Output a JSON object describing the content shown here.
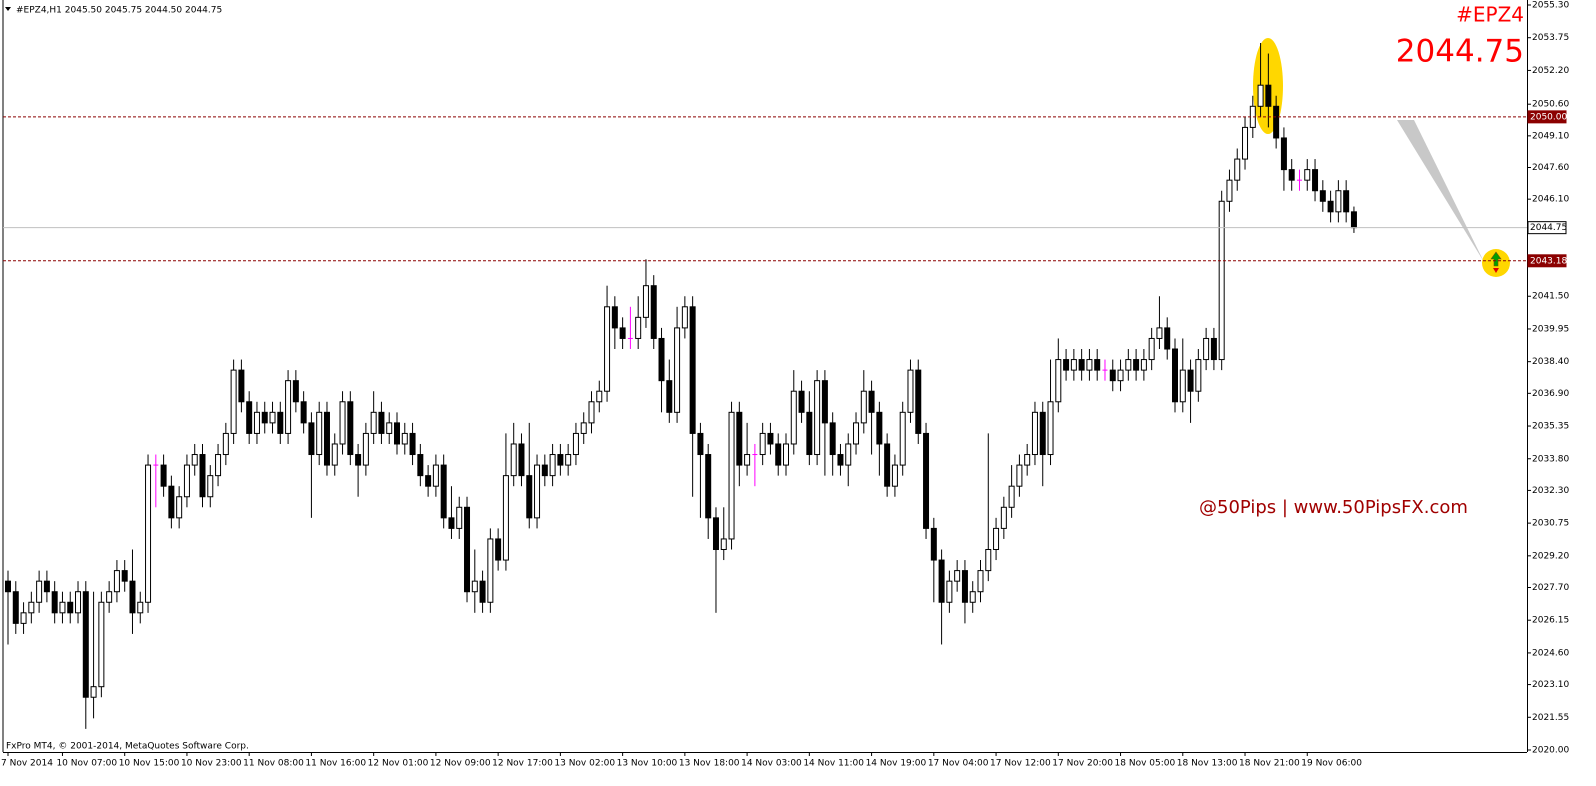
{
  "header": {
    "text": "#EPZ4,H1  2045.50 2045.75 2044.50 2044.75"
  },
  "corner": {
    "symbol": "#EPZ4",
    "price": "2044.75"
  },
  "watermark": "@50Pips | www.50PipsFX.com",
  "footer": "FxPro MT4, © 2001-2014, MetaQuotes Software Corp.",
  "chart_data": {
    "type": "candlestick",
    "bull_color": "#ffffff",
    "bear_color": "#000000",
    "doji_color": "#ff00ff",
    "outline_color": "#000000",
    "ylim": [
      2020.0,
      2055.3
    ],
    "yticks": [
      {
        "value": 2055.3,
        "label": "2055.30"
      },
      2053.75,
      {
        "value": 2052.2,
        "label": "2052.20"
      },
      {
        "value": 2050.6,
        "label": "2050.60"
      },
      {
        "value": 2049.1,
        "label": "2049.10"
      },
      {
        "value": 2047.6,
        "label": "2047.60"
      },
      {
        "value": 2046.1,
        "label": "2046.10"
      },
      {
        "value": 2041.5,
        "label": "2041.50"
      },
      2039.95,
      {
        "value": 2038.4,
        "label": "2038.40"
      },
      {
        "value": 2036.9,
        "label": "2036.90"
      },
      2035.35,
      {
        "value": 2033.8,
        "label": "2033.80"
      },
      {
        "value": 2032.3,
        "label": "2032.30"
      },
      2030.75,
      {
        "value": 2029.2,
        "label": "2029.20"
      },
      {
        "value": 2027.7,
        "label": "2027.70"
      },
      2026.15,
      {
        "value": 2024.6,
        "label": "2024.60"
      },
      {
        "value": 2023.1,
        "label": "2023.10"
      },
      2021.55,
      {
        "value": 2020.0,
        "label": "2020.00"
      }
    ],
    "hlines": [
      {
        "value": 2050.0,
        "label": "2050.00",
        "color": "#8b0000",
        "dashed": true
      },
      {
        "value": 2043.18,
        "label": "2043.18",
        "color": "#8b0000",
        "dashed": true
      },
      {
        "value": 2044.75,
        "label": "2044.75",
        "color": "#c0c0c0",
        "dashed": false
      }
    ],
    "categories": [
      "7 Nov 2014",
      null,
      null,
      null,
      null,
      null,
      null,
      "10 Nov 07:00",
      null,
      null,
      null,
      null,
      null,
      null,
      null,
      "10 Nov 15:00",
      null,
      null,
      null,
      null,
      null,
      null,
      null,
      "10 Nov 23:00",
      null,
      null,
      null,
      null,
      null,
      null,
      null,
      "11 Nov 08:00",
      null,
      null,
      null,
      null,
      null,
      null,
      null,
      "11 Nov 16:00",
      null,
      null,
      null,
      null,
      null,
      null,
      null,
      "12 Nov 01:00",
      null,
      null,
      null,
      null,
      null,
      null,
      null,
      "12 Nov 09:00",
      null,
      null,
      null,
      null,
      null,
      null,
      null,
      "12 Nov 17:00",
      null,
      null,
      null,
      null,
      null,
      null,
      null,
      "13 Nov 02:00",
      null,
      null,
      null,
      null,
      null,
      null,
      null,
      "13 Nov 10:00",
      null,
      null,
      null,
      null,
      null,
      null,
      null,
      "13 Nov 18:00",
      null,
      null,
      null,
      null,
      null,
      null,
      null,
      "14 Nov 03:00",
      null,
      null,
      null,
      null,
      null,
      null,
      null,
      "14 Nov 11:00",
      null,
      null,
      null,
      null,
      null,
      null,
      null,
      "14 Nov 19:00",
      null,
      null,
      null,
      null,
      null,
      null,
      null,
      "17 Nov 04:00",
      null,
      null,
      null,
      null,
      null,
      null,
      null,
      "17 Nov 12:00",
      null,
      null,
      null,
      null,
      null,
      null,
      null,
      "17 Nov 20:00",
      null,
      null,
      null,
      null,
      null,
      null,
      null,
      "18 Nov 05:00",
      null,
      null,
      null,
      null,
      null,
      null,
      null,
      "18 Nov 13:00",
      null,
      null,
      null,
      null,
      null,
      null,
      null,
      "18 Nov 21:00",
      null,
      null,
      null,
      null,
      null,
      null,
      null,
      "19 Nov 06:00",
      null,
      null,
      null,
      null,
      null,
      null
    ],
    "open": [
      2028.0,
      2027.5,
      2026.0,
      2026.5,
      2027.0,
      2028.0,
      2027.5,
      2026.5,
      2027.0,
      2026.5,
      2027.5,
      2022.5,
      2023.0,
      2027.0,
      2027.5,
      2028.5,
      2028.0,
      2026.5,
      2027.0,
      2033.5,
      2033.5,
      2032.5,
      2031.0,
      2032.0,
      2033.5,
      2034.0,
      2032.0,
      2033.0,
      2034.0,
      2035.0,
      2038.0,
      2036.5,
      2035.0,
      2036.0,
      2035.5,
      2036.0,
      2035.0,
      2037.5,
      2036.5,
      2035.5,
      2034.0,
      2036.0,
      2033.5,
      2034.5,
      2036.5,
      2034.0,
      2033.5,
      2035.0,
      2036.0,
      2035.0,
      2035.5,
      2034.5,
      2035.0,
      2034.0,
      2033.0,
      2032.5,
      2033.5,
      2031.0,
      2030.5,
      2031.5,
      2027.5,
      2028.0,
      2027.0,
      2030.0,
      2029.0,
      2033.0,
      2034.5,
      2033.0,
      2031.0,
      2033.5,
      2033.0,
      2034.0,
      2033.5,
      2034.0,
      2035.0,
      2035.5,
      2036.5,
      2037.0,
      2041.0,
      2040.0,
      2039.5,
      2039.5,
      2040.5,
      2042.0,
      2039.5,
      2037.5,
      2036.0,
      2040.0,
      2041.0,
      2035.0,
      2034.0,
      2031.0,
      2029.5,
      2030.0,
      2036.0,
      2033.5,
      2034.0,
      2034.0,
      2035.0,
      2034.5,
      2033.5,
      2034.5,
      2037.0,
      2036.0,
      2034.0,
      2037.5,
      2035.5,
      2034.0,
      2033.5,
      2034.5,
      2035.5,
      2037.0,
      2036.0,
      2034.5,
      2032.5,
      2033.5,
      2036.0,
      2038.0,
      2035.0,
      2030.5,
      2029.0,
      2027.0,
      2028.0,
      2028.5,
      2027.0,
      2027.5,
      2028.5,
      2029.5,
      2030.5,
      2031.5,
      2032.5,
      2033.5,
      2034.0,
      2036.0,
      2034.0,
      2036.5,
      2038.5,
      2038.0,
      2038.5,
      2038.0,
      2038.5,
      2038.0,
      2038.0,
      2037.5,
      2038.0,
      2038.5,
      2038.0,
      2038.5,
      2039.5,
      2040.0,
      2039.0,
      2036.5,
      2038.0,
      2037.0,
      2038.5,
      2039.5,
      2038.5,
      2046.0,
      2047.0,
      2048.0,
      2049.5,
      2050.5,
      2051.5,
      2050.5,
      2049.0,
      2047.5,
      2047.0,
      2047.0,
      2047.5,
      2046.5,
      2046.0,
      2045.5,
      2046.5,
      2045.5
    ],
    "high": [
      2028.5,
      2028.0,
      2027.0,
      2027.5,
      2028.5,
      2028.5,
      2028.0,
      2027.5,
      2027.5,
      2028.0,
      2028.0,
      2027.5,
      2027.5,
      2028.0,
      2029.0,
      2029.0,
      2029.5,
      2027.5,
      2034.0,
      2034.0,
      2034.0,
      2033.0,
      2032.5,
      2034.0,
      2034.5,
      2034.5,
      2033.5,
      2034.5,
      2035.5,
      2038.5,
      2038.5,
      2037.0,
      2036.5,
      2036.5,
      2036.5,
      2036.5,
      2038.0,
      2038.0,
      2037.0,
      2036.0,
      2036.5,
      2036.5,
      2035.0,
      2037.0,
      2037.0,
      2034.5,
      2035.5,
      2037.0,
      2036.5,
      2036.0,
      2036.0,
      2035.5,
      2035.5,
      2034.5,
      2033.5,
      2034.0,
      2034.0,
      2032.5,
      2032.0,
      2032.0,
      2029.5,
      2028.5,
      2030.5,
      2030.5,
      2035.0,
      2035.5,
      2035.0,
      2035.5,
      2034.0,
      2034.0,
      2034.5,
      2034.5,
      2034.5,
      2035.5,
      2036.0,
      2037.0,
      2037.5,
      2042.0,
      2041.5,
      2040.5,
      2041.0,
      2041.5,
      2043.25,
      2042.5,
      2040.0,
      2038.5,
      2041.0,
      2041.5,
      2041.5,
      2035.5,
      2034.5,
      2031.5,
      2031.5,
      2036.5,
      2036.5,
      2035.5,
      2034.5,
      2035.5,
      2035.5,
      2035.0,
      2035.0,
      2038.0,
      2037.5,
      2037.0,
      2038.0,
      2038.0,
      2036.0,
      2034.5,
      2035.0,
      2036.0,
      2038.0,
      2037.5,
      2036.5,
      2035.0,
      2034.0,
      2036.5,
      2038.5,
      2038.5,
      2035.5,
      2031.0,
      2029.5,
      2028.5,
      2029.0,
      2029.0,
      2028.0,
      2029.0,
      2035.0,
      2031.0,
      2032.0,
      2033.5,
      2034.0,
      2034.5,
      2036.5,
      2036.5,
      2038.5,
      2039.5,
      2039.0,
      2039.0,
      2039.0,
      2039.0,
      2039.0,
      2038.5,
      2038.5,
      2038.5,
      2039.0,
      2039.0,
      2039.0,
      2040.0,
      2041.5,
      2040.5,
      2039.5,
      2039.5,
      2038.5,
      2039.0,
      2040.0,
      2040.0,
      2046.5,
      2047.5,
      2048.5,
      2050.0,
      2051.0,
      2053.5,
      2053.0,
      2051.0,
      2049.5,
      2048.0,
      2047.5,
      2048.0,
      2048.0,
      2047.0,
      2046.5,
      2047.0,
      2047.0,
      2045.75
    ],
    "low": [
      2025.0,
      2025.5,
      2025.5,
      2026.0,
      2026.5,
      2027.0,
      2026.0,
      2026.0,
      2026.0,
      2026.0,
      2021.0,
      2021.5,
      2022.5,
      2026.5,
      2027.0,
      2027.5,
      2025.5,
      2026.0,
      2026.5,
      2031.5,
      2032.0,
      2030.5,
      2030.5,
      2031.5,
      2033.0,
      2031.5,
      2031.5,
      2032.5,
      2033.5,
      2034.5,
      2036.0,
      2034.5,
      2034.5,
      2035.0,
      2035.0,
      2034.5,
      2034.5,
      2036.0,
      2035.0,
      2031.0,
      2033.5,
      2033.0,
      2033.0,
      2034.0,
      2033.5,
      2032.0,
      2033.0,
      2034.5,
      2034.5,
      2034.5,
      2034.0,
      2034.0,
      2033.5,
      2032.5,
      2032.0,
      2032.0,
      2030.5,
      2030.0,
      2030.0,
      2027.0,
      2026.5,
      2026.5,
      2026.5,
      2028.5,
      2028.5,
      2032.5,
      2032.5,
      2030.5,
      2030.5,
      2032.5,
      2032.5,
      2033.0,
      2033.0,
      2033.5,
      2034.5,
      2035.0,
      2036.0,
      2036.5,
      2039.0,
      2039.0,
      2039.0,
      2039.0,
      2040.0,
      2039.0,
      2036.0,
      2035.5,
      2035.5,
      2039.5,
      2032.0,
      2031.0,
      2030.0,
      2026.5,
      2029.0,
      2029.5,
      2032.5,
      2033.0,
      2032.5,
      2033.5,
      2034.0,
      2033.0,
      2033.0,
      2034.0,
      2035.5,
      2033.5,
      2033.5,
      2033.0,
      2033.0,
      2033.0,
      2032.5,
      2034.0,
      2035.0,
      2034.0,
      2033.0,
      2032.0,
      2032.0,
      2033.0,
      2035.5,
      2034.5,
      2030.0,
      2027.0,
      2025.0,
      2026.5,
      2027.5,
      2026.0,
      2026.5,
      2027.0,
      2028.0,
      2029.0,
      2030.0,
      2031.0,
      2032.0,
      2033.0,
      2033.5,
      2032.5,
      2033.5,
      2036.0,
      2037.5,
      2037.5,
      2037.5,
      2037.5,
      2037.5,
      2037.5,
      2037.0,
      2037.0,
      2037.5,
      2037.5,
      2037.5,
      2038.0,
      2039.0,
      2038.5,
      2036.0,
      2036.0,
      2035.5,
      2036.5,
      2038.0,
      2038.0,
      2038.0,
      2045.5,
      2046.5,
      2047.5,
      2049.0,
      2050.0,
      2049.5,
      2048.5,
      2046.5,
      2046.5,
      2046.5,
      2046.5,
      2046.0,
      2045.5,
      2045.0,
      2045.0,
      2045.0,
      2044.5
    ],
    "close": [
      2027.5,
      2026.0,
      2026.5,
      2027.0,
      2028.0,
      2027.5,
      2026.5,
      2027.0,
      2026.5,
      2027.5,
      2022.5,
      2023.0,
      2027.0,
      2027.5,
      2028.5,
      2028.0,
      2026.5,
      2027.0,
      2033.5,
      2033.5,
      2032.5,
      2031.0,
      2032.0,
      2033.5,
      2034.0,
      2032.0,
      2033.0,
      2034.0,
      2035.0,
      2038.0,
      2036.5,
      2035.0,
      2036.0,
      2035.5,
      2036.0,
      2035.0,
      2037.5,
      2036.5,
      2035.5,
      2034.0,
      2036.0,
      2033.5,
      2034.5,
      2036.5,
      2034.0,
      2033.5,
      2035.0,
      2036.0,
      2035.0,
      2035.5,
      2034.5,
      2035.0,
      2034.0,
      2033.0,
      2032.5,
      2033.5,
      2031.0,
      2030.5,
      2031.5,
      2027.5,
      2028.0,
      2027.0,
      2030.0,
      2029.0,
      2033.0,
      2034.5,
      2033.0,
      2031.0,
      2033.5,
      2033.0,
      2034.0,
      2033.5,
      2034.0,
      2035.0,
      2035.5,
      2036.5,
      2037.0,
      2041.0,
      2040.0,
      2039.5,
      2039.5,
      2040.5,
      2042.0,
      2039.5,
      2037.5,
      2036.0,
      2040.0,
      2041.0,
      2035.0,
      2034.0,
      2031.0,
      2029.5,
      2030.0,
      2036.0,
      2033.5,
      2034.0,
      2034.0,
      2035.0,
      2034.5,
      2033.5,
      2034.5,
      2037.0,
      2036.0,
      2034.0,
      2037.5,
      2035.5,
      2034.0,
      2033.5,
      2034.5,
      2035.5,
      2037.0,
      2036.0,
      2034.5,
      2032.5,
      2033.5,
      2036.0,
      2038.0,
      2035.0,
      2030.5,
      2029.0,
      2027.0,
      2028.0,
      2028.5,
      2027.0,
      2027.5,
      2028.5,
      2029.5,
      2030.5,
      2031.5,
      2032.5,
      2033.5,
      2034.0,
      2036.0,
      2034.0,
      2036.5,
      2038.5,
      2038.0,
      2038.5,
      2038.0,
      2038.5,
      2038.0,
      2038.0,
      2037.5,
      2038.0,
      2038.5,
      2038.0,
      2038.5,
      2039.5,
      2040.0,
      2039.0,
      2036.5,
      2038.0,
      2037.0,
      2038.5,
      2039.5,
      2038.5,
      2046.0,
      2047.0,
      2048.0,
      2049.5,
      2050.5,
      2051.5,
      2050.5,
      2049.0,
      2047.5,
      2047.0,
      2047.0,
      2047.5,
      2046.5,
      2046.0,
      2045.5,
      2046.5,
      2045.5,
      2044.75
    ]
  }
}
